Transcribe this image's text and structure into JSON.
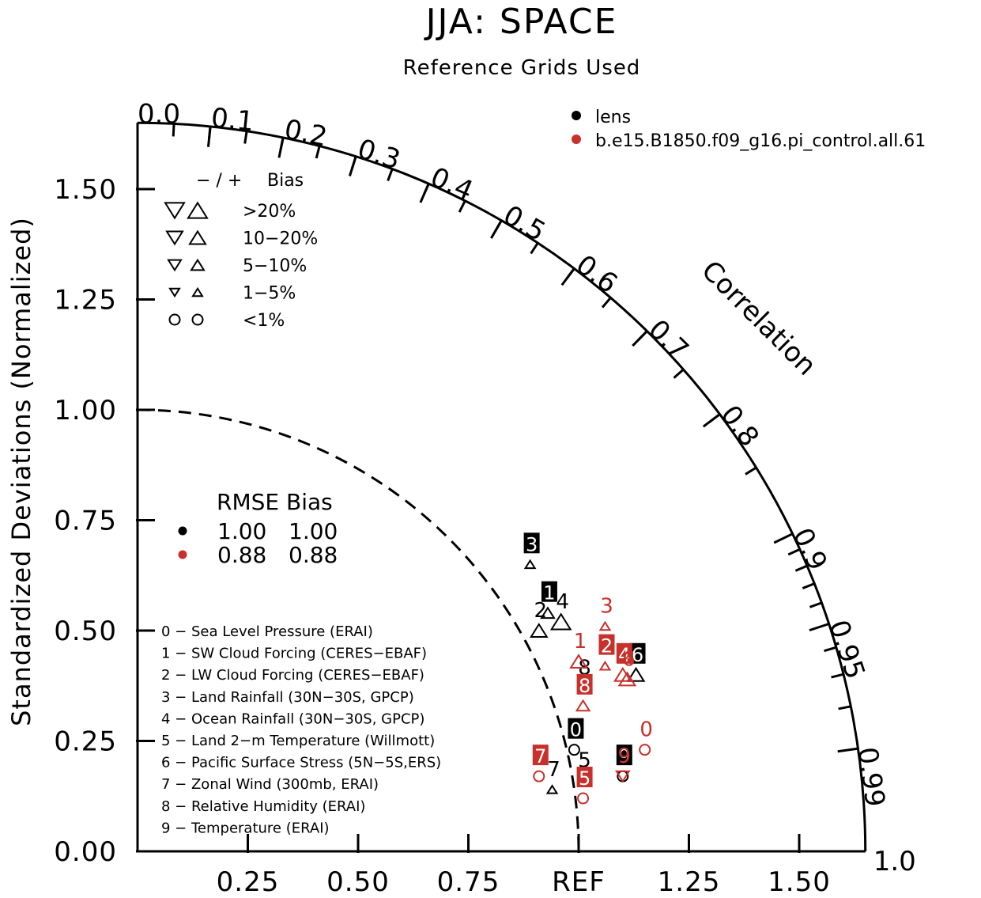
{
  "chart_data": {
    "type": "taylor",
    "title": "JJA: SPACE",
    "subtitle": "Reference Grids Used",
    "ylabel": "Standardized Deviations (Normalized)",
    "correlation_label": "Correlation",
    "ref_label": "REF",
    "std_range": [
      0,
      1.65
    ],
    "y_ticks": [
      "0.00",
      "0.25",
      "0.50",
      "0.75",
      "1.00",
      "1.25",
      "1.50"
    ],
    "x_ticks": [
      "0.25",
      "0.50",
      "0.75",
      "REF",
      "1.25",
      "1.50"
    ],
    "correlation_ticks": [
      "0.0",
      "0.1",
      "0.2",
      "0.3",
      "0.4",
      "0.5",
      "0.6",
      "0.7",
      "0.8",
      "0.9",
      "0.95",
      "0.99",
      "1.0"
    ],
    "legend": {
      "series": [
        {
          "name": "lens",
          "color": "#000000"
        },
        {
          "name": "b.e15.B1850.f09_g16.pi_control.all.61",
          "color": "#c8302c"
        }
      ]
    },
    "bias_key": {
      "header_sign": "− / +",
      "header_label": "Bias",
      "rows": [
        {
          "label": ">20%",
          "marker": "triangle",
          "size": 4
        },
        {
          "label": "10−20%",
          "marker": "triangle",
          "size": 3
        },
        {
          "label": "5−10%",
          "marker": "triangle",
          "size": 2
        },
        {
          "label": "1−5%",
          "marker": "triangle",
          "size": 1
        },
        {
          "label": "<1%",
          "marker": "circle",
          "size": 2
        }
      ]
    },
    "rmse_table": {
      "header": "RMSE Bias",
      "rows": [
        {
          "color": "#000000",
          "rmse": "1.00",
          "bias": "1.00"
        },
        {
          "color": "#c8302c",
          "rmse": "0.88",
          "bias": "0.88"
        }
      ]
    },
    "variables": [
      "0 − Sea Level Pressure (ERAI)",
      "1 − SW Cloud Forcing (CERES−EBAF)",
      "2 − LW Cloud Forcing (CERES−EBAF)",
      "3 − Land Rainfall (30N−30S, GPCP)",
      "4 − Ocean Rainfall (30N−30S, GPCP)",
      "5 − Land 2−m Temperature (Willmott)",
      "6 − Pacific Surface Stress (5N−5S,ERS)",
      "7 − Zonal Wind (300mb, ERAI)",
      "8 − Relative Humidity (ERAI)",
      "9 − Temperature (ERAI)"
    ],
    "series": [
      {
        "name": "lens",
        "color": "#000000",
        "points": [
          {
            "label": "0",
            "x": 0.99,
            "y": 0.23,
            "marker": "circle",
            "size": 2,
            "boxed": true
          },
          {
            "label": "1",
            "x": 0.93,
            "y": 0.54,
            "marker": "triangle-up",
            "size": 2,
            "boxed": true
          },
          {
            "label": "2",
            "x": 0.91,
            "y": 0.5,
            "marker": "triangle-up",
            "size": 3,
            "boxed": false
          },
          {
            "label": "3",
            "x": 0.89,
            "y": 0.65,
            "marker": "triangle-up",
            "size": 1,
            "boxed": true
          },
          {
            "label": "4",
            "x": 0.96,
            "y": 0.52,
            "marker": "triangle-up",
            "size": 4,
            "boxed": false
          },
          {
            "label": "5",
            "x": 1.01,
            "y": 0.16,
            "marker": "circle",
            "size": 2,
            "boxed": false
          },
          {
            "label": "6",
            "x": 1.13,
            "y": 0.4,
            "marker": "triangle-up",
            "size": 3,
            "boxed": true
          },
          {
            "label": "7",
            "x": 0.94,
            "y": 0.14,
            "marker": "triangle-up",
            "size": 1,
            "boxed": false
          },
          {
            "label": "8",
            "x": 1.01,
            "y": 0.37,
            "marker": "circle",
            "size": 2,
            "boxed": false
          },
          {
            "label": "9",
            "x": 1.1,
            "y": 0.17,
            "marker": "circle",
            "size": 2,
            "boxed": true
          }
        ]
      },
      {
        "name": "b.e15.B1850.f09_g16.pi_control.all.61",
        "color": "#c8302c",
        "points": [
          {
            "label": "0",
            "x": 1.15,
            "y": 0.23,
            "marker": "circle",
            "size": 2,
            "boxed": false
          },
          {
            "label": "1",
            "x": 1.0,
            "y": 0.43,
            "marker": "triangle-up",
            "size": 3,
            "boxed": false
          },
          {
            "label": "2",
            "x": 1.06,
            "y": 0.42,
            "marker": "triangle-up",
            "size": 1,
            "boxed": true
          },
          {
            "label": "3",
            "x": 1.06,
            "y": 0.51,
            "marker": "triangle-up",
            "size": 1,
            "boxed": false
          },
          {
            "label": "4",
            "x": 1.1,
            "y": 0.4,
            "marker": "triangle-up",
            "size": 3,
            "boxed": true
          },
          {
            "label": "5",
            "x": 1.01,
            "y": 0.12,
            "marker": "circle",
            "size": 2,
            "boxed": true
          },
          {
            "label": "6",
            "x": 1.11,
            "y": 0.39,
            "marker": "triangle-up",
            "size": 3,
            "boxed": false
          },
          {
            "label": "7",
            "x": 0.91,
            "y": 0.17,
            "marker": "circle",
            "size": 2,
            "boxed": true
          },
          {
            "label": "8",
            "x": 1.01,
            "y": 0.33,
            "marker": "triangle-up",
            "size": 2,
            "boxed": true
          },
          {
            "label": "9",
            "x": 1.1,
            "y": 0.17,
            "marker": "triangle-down",
            "size": 2,
            "boxed": false
          }
        ]
      }
    ]
  }
}
